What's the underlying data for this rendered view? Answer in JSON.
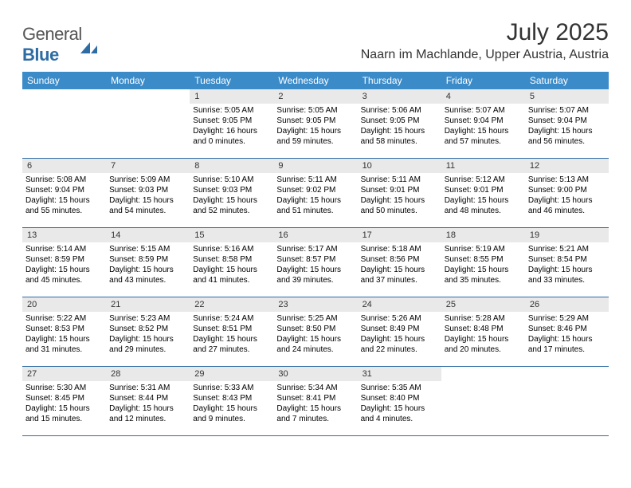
{
  "logo": {
    "part1": "General",
    "part2": "Blue"
  },
  "header": {
    "month_title": "July 2025",
    "location": "Naarn im Machlande, Upper Austria, Austria"
  },
  "style": {
    "header_bg": "#3b8bc9",
    "header_fg": "#ffffff",
    "daynum_bg": "#e9e9e9",
    "rule_color": "#2e6da4",
    "page_bg": "#ffffff",
    "text_color": "#000000",
    "logo_gray": "#555555",
    "logo_blue": "#2e6da4",
    "title_fontsize": 30,
    "location_fontsize": 16,
    "weekday_fontsize": 12,
    "cell_fontsize": 10
  },
  "weekdays": [
    "Sunday",
    "Monday",
    "Tuesday",
    "Wednesday",
    "Thursday",
    "Friday",
    "Saturday"
  ],
  "weeks": [
    [
      {
        "n": "",
        "sr": "",
        "ss": "",
        "dl": ""
      },
      {
        "n": "",
        "sr": "",
        "ss": "",
        "dl": ""
      },
      {
        "n": "1",
        "sr": "Sunrise: 5:05 AM",
        "ss": "Sunset: 9:05 PM",
        "dl": "Daylight: 16 hours and 0 minutes."
      },
      {
        "n": "2",
        "sr": "Sunrise: 5:05 AM",
        "ss": "Sunset: 9:05 PM",
        "dl": "Daylight: 15 hours and 59 minutes."
      },
      {
        "n": "3",
        "sr": "Sunrise: 5:06 AM",
        "ss": "Sunset: 9:05 PM",
        "dl": "Daylight: 15 hours and 58 minutes."
      },
      {
        "n": "4",
        "sr": "Sunrise: 5:07 AM",
        "ss": "Sunset: 9:04 PM",
        "dl": "Daylight: 15 hours and 57 minutes."
      },
      {
        "n": "5",
        "sr": "Sunrise: 5:07 AM",
        "ss": "Sunset: 9:04 PM",
        "dl": "Daylight: 15 hours and 56 minutes."
      }
    ],
    [
      {
        "n": "6",
        "sr": "Sunrise: 5:08 AM",
        "ss": "Sunset: 9:04 PM",
        "dl": "Daylight: 15 hours and 55 minutes."
      },
      {
        "n": "7",
        "sr": "Sunrise: 5:09 AM",
        "ss": "Sunset: 9:03 PM",
        "dl": "Daylight: 15 hours and 54 minutes."
      },
      {
        "n": "8",
        "sr": "Sunrise: 5:10 AM",
        "ss": "Sunset: 9:03 PM",
        "dl": "Daylight: 15 hours and 52 minutes."
      },
      {
        "n": "9",
        "sr": "Sunrise: 5:11 AM",
        "ss": "Sunset: 9:02 PM",
        "dl": "Daylight: 15 hours and 51 minutes."
      },
      {
        "n": "10",
        "sr": "Sunrise: 5:11 AM",
        "ss": "Sunset: 9:01 PM",
        "dl": "Daylight: 15 hours and 50 minutes."
      },
      {
        "n": "11",
        "sr": "Sunrise: 5:12 AM",
        "ss": "Sunset: 9:01 PM",
        "dl": "Daylight: 15 hours and 48 minutes."
      },
      {
        "n": "12",
        "sr": "Sunrise: 5:13 AM",
        "ss": "Sunset: 9:00 PM",
        "dl": "Daylight: 15 hours and 46 minutes."
      }
    ],
    [
      {
        "n": "13",
        "sr": "Sunrise: 5:14 AM",
        "ss": "Sunset: 8:59 PM",
        "dl": "Daylight: 15 hours and 45 minutes."
      },
      {
        "n": "14",
        "sr": "Sunrise: 5:15 AM",
        "ss": "Sunset: 8:59 PM",
        "dl": "Daylight: 15 hours and 43 minutes."
      },
      {
        "n": "15",
        "sr": "Sunrise: 5:16 AM",
        "ss": "Sunset: 8:58 PM",
        "dl": "Daylight: 15 hours and 41 minutes."
      },
      {
        "n": "16",
        "sr": "Sunrise: 5:17 AM",
        "ss": "Sunset: 8:57 PM",
        "dl": "Daylight: 15 hours and 39 minutes."
      },
      {
        "n": "17",
        "sr": "Sunrise: 5:18 AM",
        "ss": "Sunset: 8:56 PM",
        "dl": "Daylight: 15 hours and 37 minutes."
      },
      {
        "n": "18",
        "sr": "Sunrise: 5:19 AM",
        "ss": "Sunset: 8:55 PM",
        "dl": "Daylight: 15 hours and 35 minutes."
      },
      {
        "n": "19",
        "sr": "Sunrise: 5:21 AM",
        "ss": "Sunset: 8:54 PM",
        "dl": "Daylight: 15 hours and 33 minutes."
      }
    ],
    [
      {
        "n": "20",
        "sr": "Sunrise: 5:22 AM",
        "ss": "Sunset: 8:53 PM",
        "dl": "Daylight: 15 hours and 31 minutes."
      },
      {
        "n": "21",
        "sr": "Sunrise: 5:23 AM",
        "ss": "Sunset: 8:52 PM",
        "dl": "Daylight: 15 hours and 29 minutes."
      },
      {
        "n": "22",
        "sr": "Sunrise: 5:24 AM",
        "ss": "Sunset: 8:51 PM",
        "dl": "Daylight: 15 hours and 27 minutes."
      },
      {
        "n": "23",
        "sr": "Sunrise: 5:25 AM",
        "ss": "Sunset: 8:50 PM",
        "dl": "Daylight: 15 hours and 24 minutes."
      },
      {
        "n": "24",
        "sr": "Sunrise: 5:26 AM",
        "ss": "Sunset: 8:49 PM",
        "dl": "Daylight: 15 hours and 22 minutes."
      },
      {
        "n": "25",
        "sr": "Sunrise: 5:28 AM",
        "ss": "Sunset: 8:48 PM",
        "dl": "Daylight: 15 hours and 20 minutes."
      },
      {
        "n": "26",
        "sr": "Sunrise: 5:29 AM",
        "ss": "Sunset: 8:46 PM",
        "dl": "Daylight: 15 hours and 17 minutes."
      }
    ],
    [
      {
        "n": "27",
        "sr": "Sunrise: 5:30 AM",
        "ss": "Sunset: 8:45 PM",
        "dl": "Daylight: 15 hours and 15 minutes."
      },
      {
        "n": "28",
        "sr": "Sunrise: 5:31 AM",
        "ss": "Sunset: 8:44 PM",
        "dl": "Daylight: 15 hours and 12 minutes."
      },
      {
        "n": "29",
        "sr": "Sunrise: 5:33 AM",
        "ss": "Sunset: 8:43 PM",
        "dl": "Daylight: 15 hours and 9 minutes."
      },
      {
        "n": "30",
        "sr": "Sunrise: 5:34 AM",
        "ss": "Sunset: 8:41 PM",
        "dl": "Daylight: 15 hours and 7 minutes."
      },
      {
        "n": "31",
        "sr": "Sunrise: 5:35 AM",
        "ss": "Sunset: 8:40 PM",
        "dl": "Daylight: 15 hours and 4 minutes."
      },
      {
        "n": "",
        "sr": "",
        "ss": "",
        "dl": ""
      },
      {
        "n": "",
        "sr": "",
        "ss": "",
        "dl": ""
      }
    ]
  ]
}
